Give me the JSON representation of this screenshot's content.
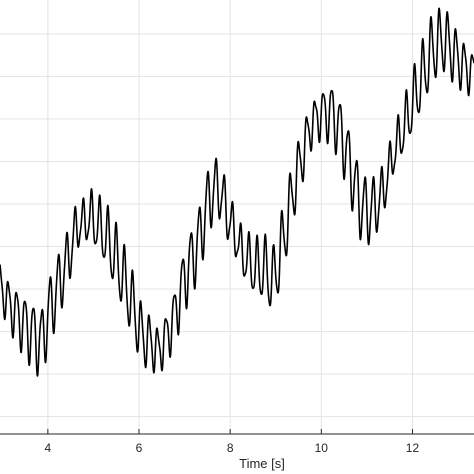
{
  "chart_data": {
    "type": "line",
    "title": "",
    "xlabel": "Time [s]",
    "ylabel": "",
    "xlim": [
      2.95,
      13.35
    ],
    "ylim": [
      0.0,
      1.0
    ],
    "grid": true,
    "x_ticks": [
      4,
      6,
      8,
      10,
      12
    ],
    "x_tick_labels": [
      "4",
      "6",
      "8",
      "10",
      "12"
    ],
    "y_grid": [
      0.04,
      0.138,
      0.236,
      0.334,
      0.432,
      0.53,
      0.628,
      0.726,
      0.824,
      0.922
    ],
    "series": [
      {
        "name": "",
        "color": "#000000",
        "oscillation_hz": 5.5,
        "points": [
          [
            2.95,
            0.34
          ],
          [
            3.2,
            0.29
          ],
          [
            3.5,
            0.25
          ],
          [
            3.85,
            0.21
          ],
          [
            4.05,
            0.29
          ],
          [
            4.4,
            0.39
          ],
          [
            4.65,
            0.48
          ],
          [
            4.95,
            0.5
          ],
          [
            5.25,
            0.46
          ],
          [
            5.55,
            0.39
          ],
          [
            5.85,
            0.3
          ],
          [
            6.05,
            0.23
          ],
          [
            6.45,
            0.19
          ],
          [
            6.75,
            0.26
          ],
          [
            7.0,
            0.36
          ],
          [
            7.3,
            0.44
          ],
          [
            7.55,
            0.55
          ],
          [
            7.75,
            0.57
          ],
          [
            7.9,
            0.52
          ],
          [
            8.1,
            0.46
          ],
          [
            8.3,
            0.41
          ],
          [
            8.55,
            0.38
          ],
          [
            8.75,
            0.38
          ],
          [
            8.95,
            0.35
          ],
          [
            9.15,
            0.44
          ],
          [
            9.4,
            0.57
          ],
          [
            9.6,
            0.65
          ],
          [
            9.8,
            0.72
          ],
          [
            10.05,
            0.74
          ],
          [
            10.25,
            0.74
          ],
          [
            10.45,
            0.69
          ],
          [
            10.65,
            0.61
          ],
          [
            10.85,
            0.53
          ],
          [
            11.05,
            0.51
          ],
          [
            11.3,
            0.54
          ],
          [
            11.6,
            0.65
          ],
          [
            11.9,
            0.73
          ],
          [
            12.2,
            0.82
          ],
          [
            12.45,
            0.89
          ],
          [
            12.7,
            0.91
          ],
          [
            12.95,
            0.87
          ],
          [
            13.2,
            0.84
          ],
          [
            13.35,
            0.83
          ]
        ]
      }
    ]
  }
}
